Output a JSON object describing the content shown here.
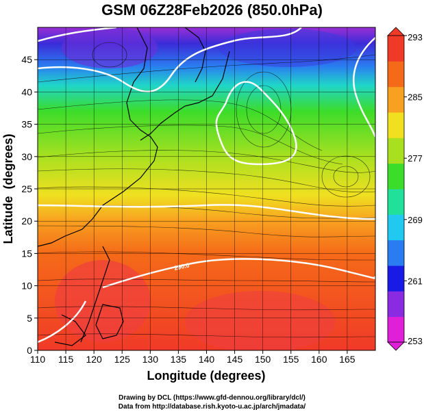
{
  "title": "GSM 06Z28Feb2026 (850.0hPa)",
  "axes": {
    "xlabel": "Longitude (degrees)",
    "ylabel": "Latitude  (degrees)",
    "xlim": [
      110,
      170
    ],
    "ylim": [
      0,
      50
    ],
    "xticks": [
      110,
      115,
      120,
      125,
      130,
      135,
      140,
      145,
      150,
      155,
      160,
      165
    ],
    "yticks": [
      0,
      5,
      10,
      15,
      20,
      25,
      30,
      35,
      40,
      45
    ],
    "grid": true
  },
  "colorbar": {
    "ticks": [
      253,
      261,
      269,
      277,
      285,
      293
    ],
    "min": 253,
    "max": 293,
    "colors": [
      "#e020d8",
      "#8a2be2",
      "#1a1ae6",
      "#2a7df0",
      "#21c8f0",
      "#20e09a",
      "#3cdc2a",
      "#a8e020",
      "#f0e020",
      "#f8a020",
      "#f56a18",
      "#f03a28"
    ]
  },
  "contour_label": "290.0",
  "credits": {
    "line1": "Drawing by DCL (https://www.gfd-dennou.org/library/dcl/)",
    "line2": "Data from http://database.rish.kyoto-u.ac.jp/arch/jmadata/"
  }
}
